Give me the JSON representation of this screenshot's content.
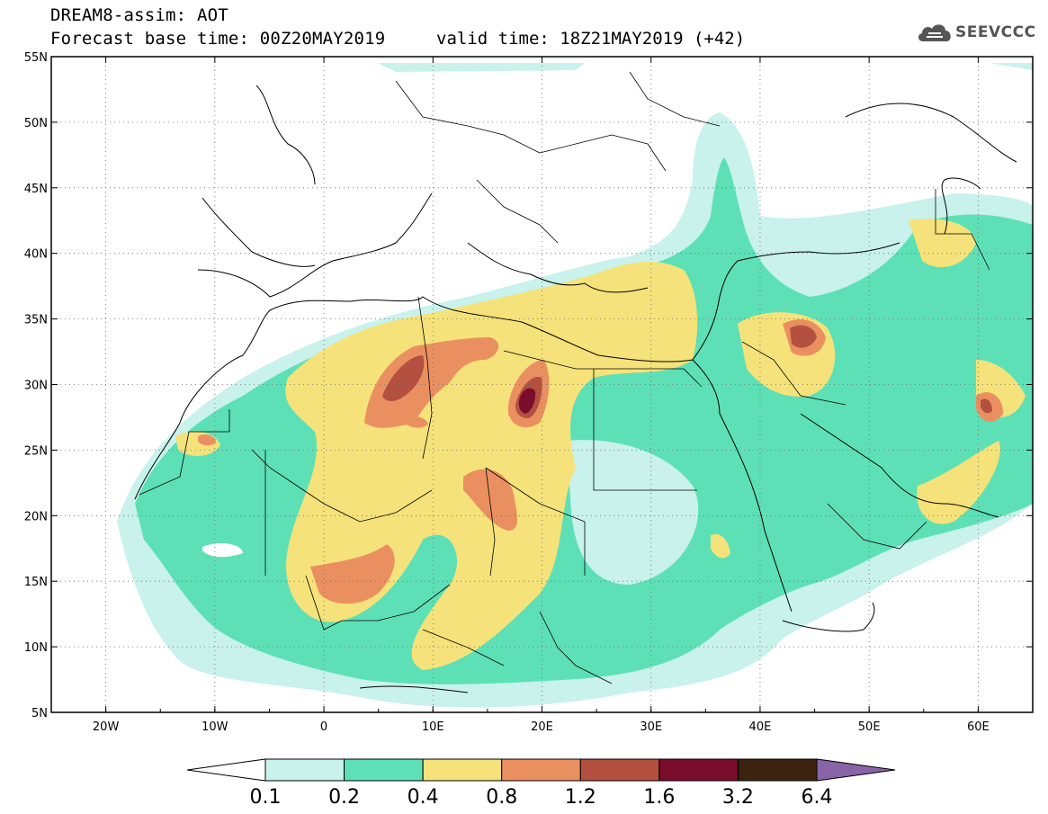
{
  "header": {
    "title_line1": "DREAM8-assim: AOT",
    "title_line2": "Forecast base time: 00Z20MAY2019",
    "valid_time": "valid time: 18Z21MAY2019 (+42)"
  },
  "logo": {
    "text": "SEEVCCC",
    "icon": "cloud-icon"
  },
  "map": {
    "lon_range": [
      -25,
      65
    ],
    "lat_range": [
      5,
      55
    ],
    "lat_ticks": [
      "5N",
      "10N",
      "15N",
      "20N",
      "25N",
      "30N",
      "35N",
      "40N",
      "45N",
      "50N",
      "55N"
    ],
    "lon_ticks": [
      "20W",
      "10W",
      "0",
      "10E",
      "20E",
      "30E",
      "40E",
      "50E",
      "60E"
    ],
    "grid": "dotted"
  },
  "colorbar": {
    "labels": [
      "0.1",
      "0.2",
      "0.4",
      "0.8",
      "1.2",
      "1.6",
      "3.2",
      "6.4"
    ],
    "colors": [
      "#c8f2eb",
      "#5ee0b6",
      "#f5e27a",
      "#ea9060",
      "#b45040",
      "#7a0c2c",
      "#3a2410",
      "#8a64a8"
    ]
  }
}
